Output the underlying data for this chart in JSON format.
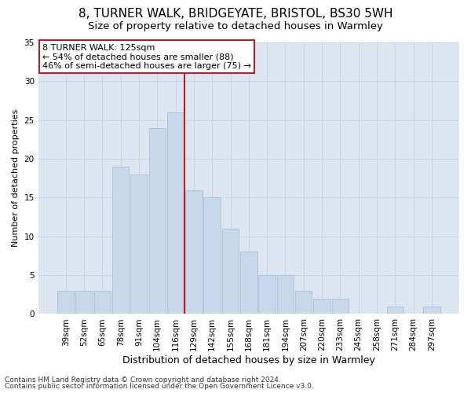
{
  "title": "8, TURNER WALK, BRIDGEYATE, BRISTOL, BS30 5WH",
  "subtitle": "Size of property relative to detached houses in Warmley",
  "xlabel": "Distribution of detached houses by size in Warmley",
  "ylabel": "Number of detached properties",
  "categories": [
    "39sqm",
    "52sqm",
    "65sqm",
    "78sqm",
    "91sqm",
    "104sqm",
    "116sqm",
    "129sqm",
    "142sqm",
    "155sqm",
    "168sqm",
    "181sqm",
    "194sqm",
    "207sqm",
    "220sqm",
    "233sqm",
    "245sqm",
    "258sqm",
    "271sqm",
    "284sqm",
    "297sqm"
  ],
  "values": [
    3,
    3,
    3,
    19,
    18,
    24,
    26,
    16,
    15,
    11,
    8,
    5,
    5,
    3,
    2,
    2,
    0,
    0,
    1,
    0,
    1
  ],
  "bar_color": "#c8d8ea",
  "bar_edge_color": "#a8c0d8",
  "grid_color": "#c8d4e4",
  "background_color": "#dde6f0",
  "vline_x": 6.5,
  "vline_color": "#b22222",
  "annotation_text": "8 TURNER WALK: 125sqm\n← 54% of detached houses are smaller (88)\n46% of semi-detached houses are larger (75) →",
  "annotation_box_color": "#b22222",
  "ylim": [
    0,
    35
  ],
  "yticks": [
    0,
    5,
    10,
    15,
    20,
    25,
    30,
    35
  ],
  "footer_line1": "Contains HM Land Registry data © Crown copyright and database right 2024.",
  "footer_line2": "Contains public sector information licensed under the Open Government Licence v3.0.",
  "title_fontsize": 11,
  "subtitle_fontsize": 9.5,
  "xlabel_fontsize": 9,
  "ylabel_fontsize": 8,
  "tick_fontsize": 7.5,
  "annotation_fontsize": 8,
  "footer_fontsize": 6.5
}
